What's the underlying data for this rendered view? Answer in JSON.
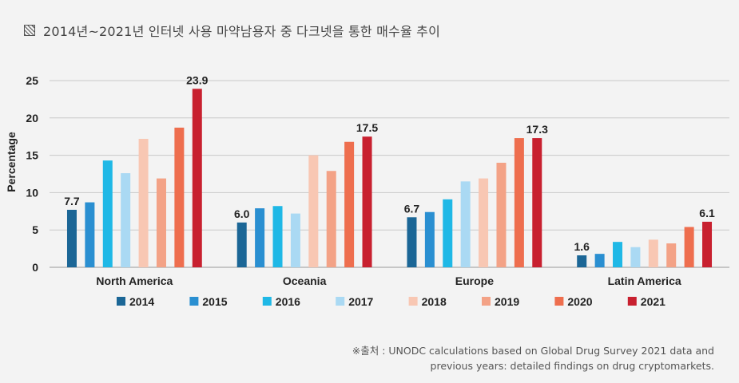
{
  "page": {
    "title": "2014년~2021년 인터넷 사용 마약남용자 중 다크넷을 통한 매수율 추이",
    "source_line1": "※출처 : UNODC calculations based on Global Drug Survey 2021 data and",
    "source_line2": "previous years: detailed findings on drug cryptomarkets."
  },
  "chart_data": {
    "type": "bar",
    "title": "2014년~2021년 인터넷 사용 마약남용자 중 다크넷을 통한 매수율 추이",
    "xlabel": "",
    "ylabel": "Percentage",
    "ylim": [
      0,
      25
    ],
    "yticks": [
      0,
      5,
      10,
      15,
      20,
      25
    ],
    "grid": true,
    "legend": "bottom",
    "categories": [
      "North America",
      "Oceania",
      "Europe",
      "Latin America"
    ],
    "series": [
      {
        "name": "2014",
        "color": "#1b6696",
        "values": [
          7.7,
          6.0,
          6.7,
          1.6
        ]
      },
      {
        "name": "2015",
        "color": "#2a8fd1",
        "values": [
          8.7,
          7.9,
          7.4,
          1.8
        ]
      },
      {
        "name": "2016",
        "color": "#1fb8e6",
        "values": [
          14.3,
          8.2,
          9.1,
          3.4
        ]
      },
      {
        "name": "2017",
        "color": "#aad9f3",
        "values": [
          12.6,
          7.2,
          11.5,
          2.7
        ]
      },
      {
        "name": "2018",
        "color": "#f8c7b3",
        "values": [
          17.2,
          15.0,
          11.9,
          3.7
        ]
      },
      {
        "name": "2019",
        "color": "#f3a286",
        "values": [
          11.9,
          12.9,
          14.0,
          3.2
        ]
      },
      {
        "name": "2020",
        "color": "#ee6e4e",
        "values": [
          18.7,
          16.8,
          17.3,
          5.4
        ]
      },
      {
        "name": "2021",
        "color": "#c8202f",
        "values": [
          23.9,
          17.5,
          17.3,
          6.1
        ]
      }
    ],
    "data_labels": [
      {
        "category": "North America",
        "series": "2014",
        "text": "7.7"
      },
      {
        "category": "North America",
        "series": "2021",
        "text": "23.9"
      },
      {
        "category": "Oceania",
        "series": "2014",
        "text": "6.0"
      },
      {
        "category": "Oceania",
        "series": "2021",
        "text": "17.5"
      },
      {
        "category": "Europe",
        "series": "2014",
        "text": "6.7"
      },
      {
        "category": "Europe",
        "series": "2021",
        "text": "17.3"
      },
      {
        "category": "Latin America",
        "series": "2014",
        "text": "1.6"
      },
      {
        "category": "Latin America",
        "series": "2021",
        "text": "6.1"
      }
    ]
  }
}
